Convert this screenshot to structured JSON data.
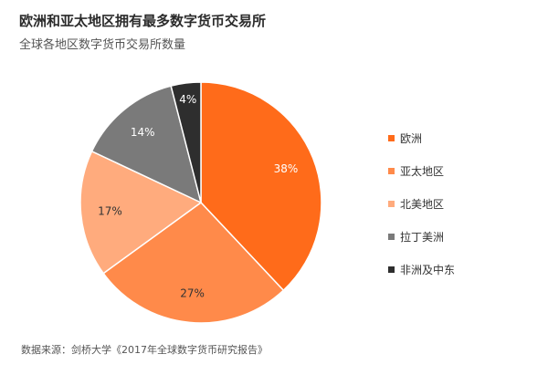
{
  "chart_data": {
    "type": "pie",
    "title": "欧洲和亚太地区拥有最多数字货币交易所",
    "subtitle": "全球各地区数字货币交易所数量",
    "categories": [
      "欧洲",
      "亚太地区",
      "北美地区",
      "拉丁美洲",
      "非洲及中东"
    ],
    "values": [
      38,
      27,
      17,
      14,
      4
    ],
    "value_labels": [
      "38%",
      "27%",
      "17%",
      "14%",
      "4%"
    ],
    "colors": [
      "#ff6b1a",
      "#ff8a4a",
      "#ffab7d",
      "#7a7a7a",
      "#2e2e2e"
    ],
    "label_colors": [
      "#ffffff",
      "#333333",
      "#333333",
      "#ffffff",
      "#ffffff"
    ],
    "legend_position": "right",
    "start_angle": "top",
    "direction": "clockwise"
  },
  "source": "数据来源：剑桥大学《2017年全球数字货币研究报告》"
}
